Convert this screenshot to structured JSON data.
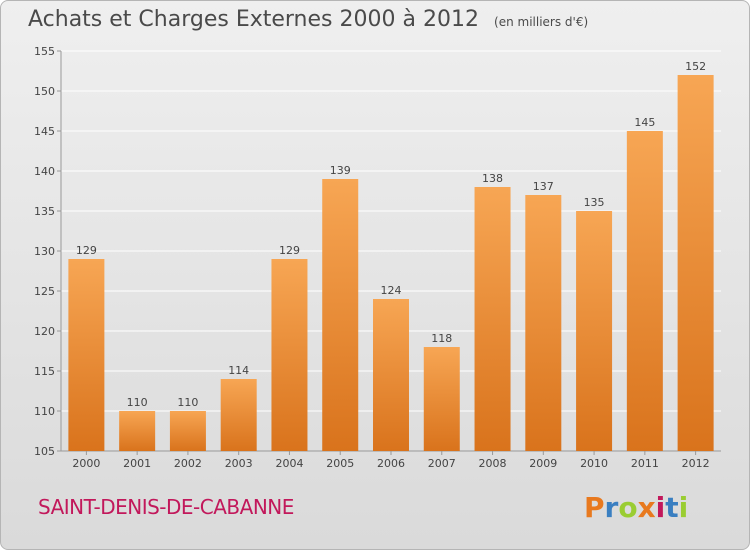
{
  "header": {
    "title": "Achats et Charges Externes 2000 à 2012",
    "unit": "(en milliers d'€)"
  },
  "footer": {
    "commune": "SAINT-DENIS-DE-CABANNE",
    "logo_text": "Proxiti",
    "logo_colors": [
      "#e8791e",
      "#3a7fc1",
      "#9acd32",
      "#e8791e",
      "#c2185b",
      "#3a7fc1",
      "#9acd32"
    ]
  },
  "colors": {
    "bar_top": "#f7a654",
    "bar_bottom": "#d9731c",
    "grid": "#ffffff",
    "axis_text": "#444444"
  },
  "chart_data": {
    "type": "bar",
    "categories": [
      "2000",
      "2001",
      "2002",
      "2003",
      "2004",
      "2005",
      "2006",
      "2007",
      "2008",
      "2009",
      "2010",
      "2011",
      "2012"
    ],
    "values": [
      129,
      110,
      110,
      114,
      129,
      139,
      124,
      118,
      138,
      137,
      135,
      145,
      152
    ],
    "ylim": [
      105,
      155
    ],
    "yticks": [
      105,
      110,
      115,
      120,
      125,
      130,
      135,
      140,
      145,
      150,
      155
    ],
    "grid": true,
    "legend": "none"
  }
}
